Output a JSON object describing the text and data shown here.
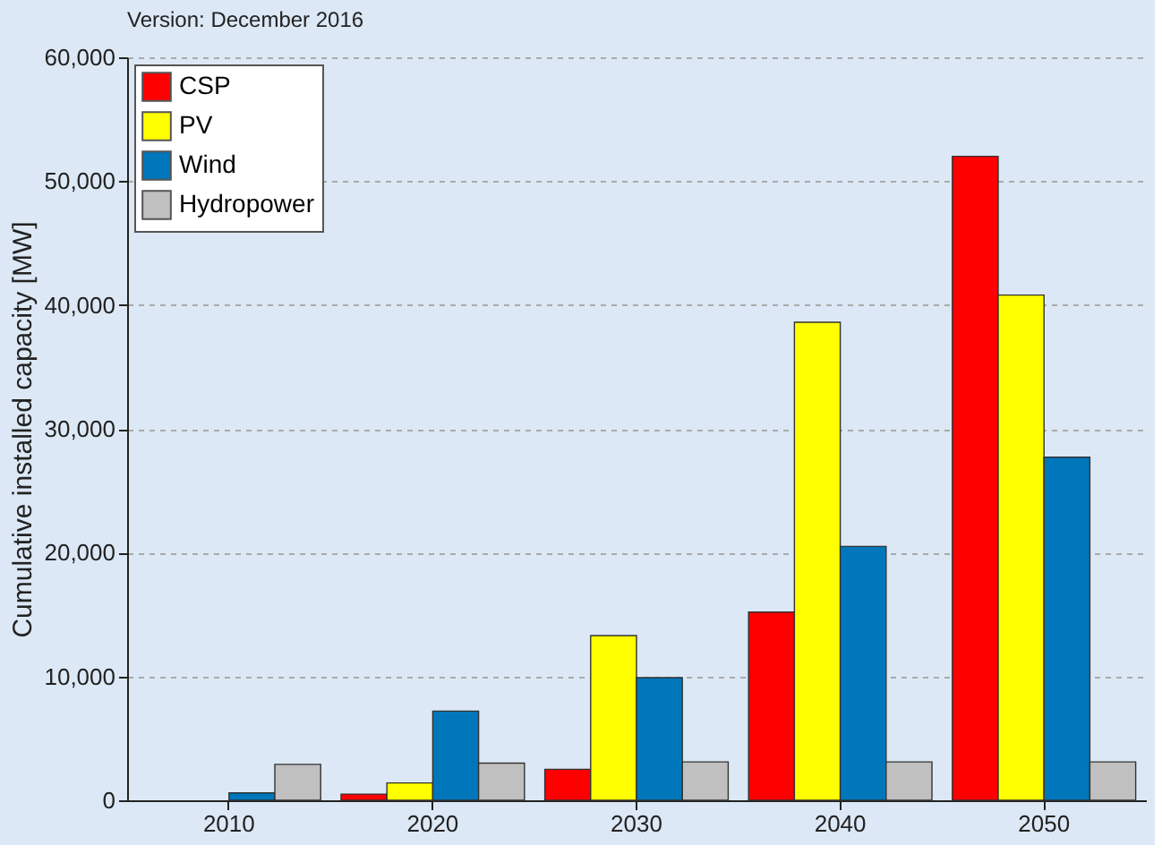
{
  "chart_data": {
    "type": "bar",
    "ylabel": "Cumulative installed capacity [MW]",
    "annotations": [
      "Version: December 2016"
    ],
    "categories": [
      "2010",
      "2020",
      "2030",
      "2040",
      "2050"
    ],
    "series": [
      {
        "name": "CSP",
        "color": "#ff0000",
        "values": [
          null,
          500,
          2500,
          15200,
          52000
        ]
      },
      {
        "name": "PV",
        "color": "#ffff00",
        "values": [
          null,
          1400,
          13300,
          38600,
          40800
        ]
      },
      {
        "name": "Wind",
        "color": "#0077bb",
        "values": [
          600,
          7200,
          9900,
          20500,
          27700
        ]
      },
      {
        "name": "Hydropower",
        "color": "#c0c0c0",
        "values": [
          2900,
          3000,
          3100,
          3100,
          3100
        ]
      }
    ],
    "ylim": [
      0,
      60000
    ],
    "yticks": [
      0,
      {
        "value": 10000,
        "label": "10,000"
      },
      {
        "value": 20000,
        "label": "20,000"
      },
      {
        "value": 30000,
        "label": "30,000"
      },
      {
        "value": 40000,
        "label": "40,000"
      },
      {
        "value": 50000,
        "label": "50,000"
      },
      {
        "value": 60000,
        "label": "60,000"
      }
    ],
    "grid": "y",
    "legend": "top left"
  }
}
